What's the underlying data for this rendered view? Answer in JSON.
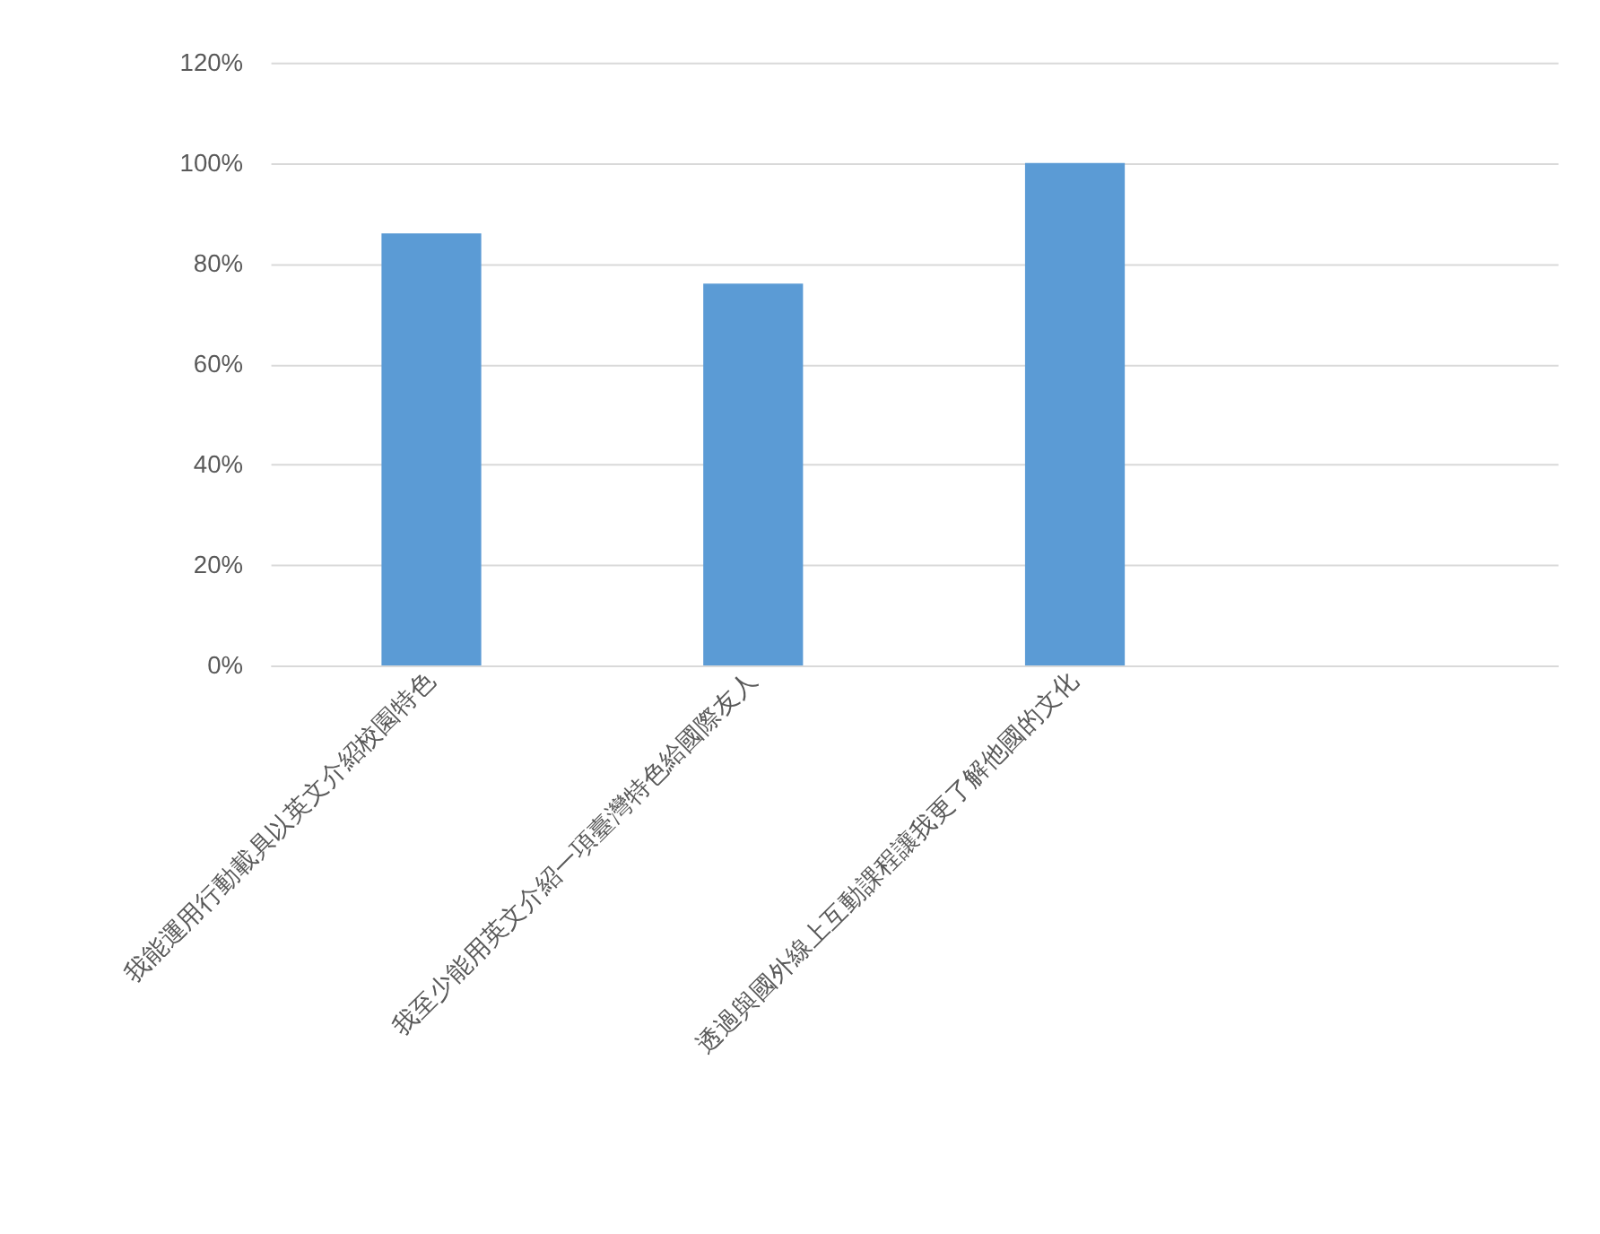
{
  "chart_data": {
    "type": "bar",
    "categories": [
      "我能運用行動載具以英文介紹校園特色",
      "我至少能用英文介紹一項臺灣特色給國際友人",
      "透過與國外線上互動課程讓我更了解他國的文化",
      null
    ],
    "values": [
      86,
      76,
      100,
      null
    ],
    "color": "#5b9bd5",
    "ylim": [
      0,
      120
    ],
    "yticks": [
      {
        "value": 0,
        "label": "0%"
      },
      {
        "value": 20,
        "label": "20%"
      },
      {
        "value": 40,
        "label": "40%"
      },
      {
        "value": 60,
        "label": "60%"
      },
      {
        "value": 80,
        "label": "80%"
      },
      {
        "value": 100,
        "label": "100%"
      },
      {
        "value": 120,
        "label": "120%"
      }
    ],
    "grid": "y"
  }
}
